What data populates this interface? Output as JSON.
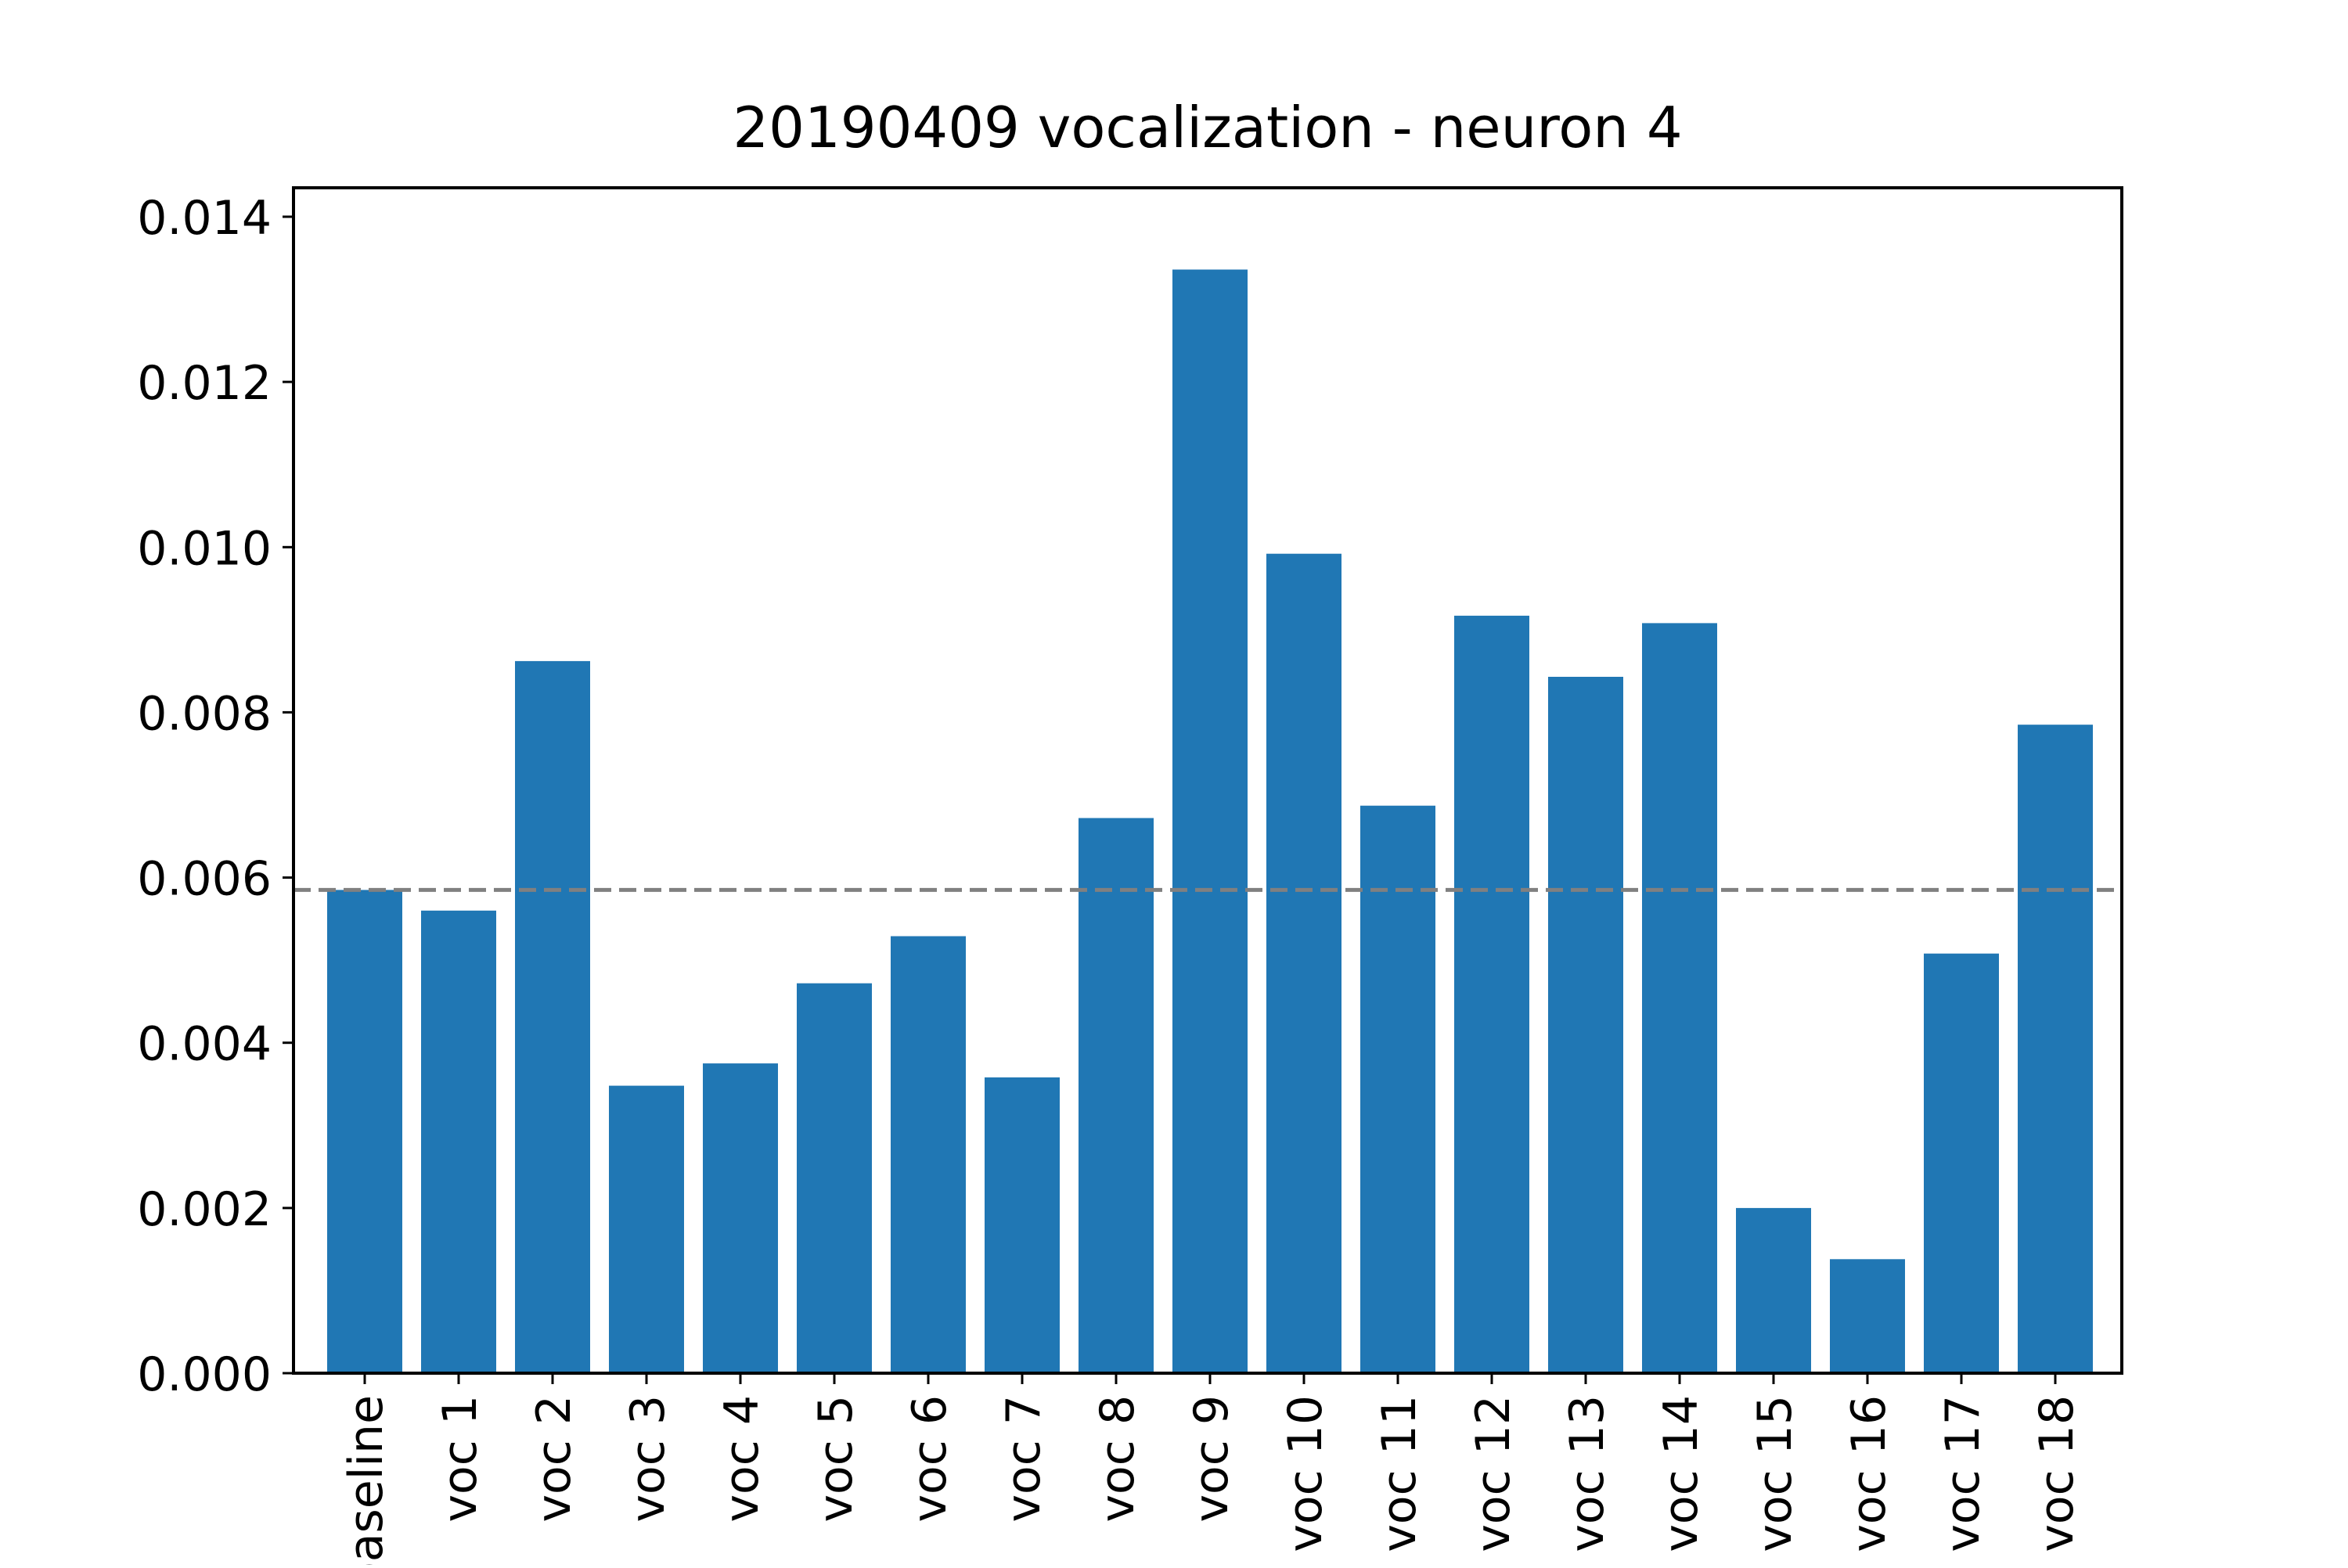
{
  "chart_data": {
    "type": "bar",
    "title": "20190409 vocalization - neuron 4",
    "xlabel": "",
    "ylabel": "",
    "categories": [
      "baseline",
      "voc 1",
      "voc 2",
      "voc 3",
      "voc 4",
      "voc 5",
      "voc 6",
      "voc 7",
      "voc 8",
      "voc 9",
      "voc 10",
      "voc 11",
      "voc 12",
      "voc 13",
      "voc 14",
      "voc 15",
      "voc 16",
      "voc 17",
      "voc 18"
    ],
    "values": [
      0.00585,
      0.0056,
      0.00862,
      0.00348,
      0.00375,
      0.00472,
      0.00529,
      0.00358,
      0.00672,
      0.01336,
      0.00992,
      0.00687,
      0.00917,
      0.00843,
      0.00908,
      0.002,
      0.00138,
      0.00508,
      0.00785
    ],
    "baseline_line": 0.00585,
    "ylim": [
      0,
      0.01435
    ],
    "yticks": [
      "0.000",
      "0.002",
      "0.004",
      "0.006",
      "0.008",
      "0.010",
      "0.012",
      "0.014"
    ],
    "ytick_values": [
      0,
      0.002,
      0.004,
      0.006,
      0.008,
      0.01,
      0.012,
      0.014
    ],
    "grid": false,
    "colors": {
      "bar": "#2077b4",
      "reference_line": "#808080",
      "axes": "#000000"
    }
  }
}
